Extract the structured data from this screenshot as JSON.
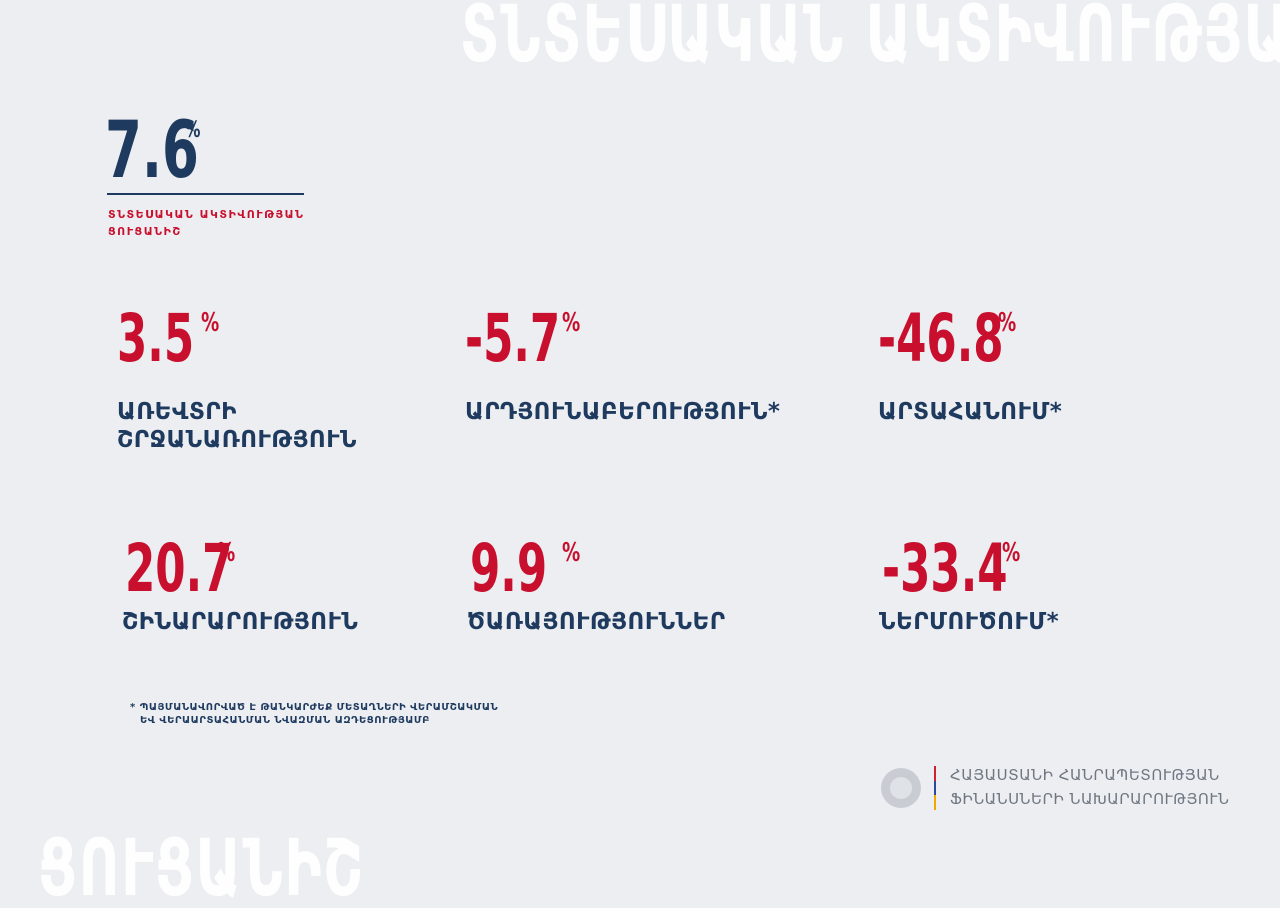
{
  "background": {
    "top": "ՏՆՏԵՍԱԿԱՆ ԱԿՏԻՎՈՒԹՅԱՆ",
    "bottom": "ՑՈՒՑԱՆԻՇ"
  },
  "headline": {
    "value": 7.6,
    "unit": "%",
    "label": [
      "ՏՆՏԵՍԱԿԱՆ ԱԿՏԻՎՈՒԹՅԱՆ",
      "ՑՈՒՑԱՆԻՇ"
    ]
  },
  "metrics": [
    {
      "value": 3.5,
      "unit": "%",
      "label": [
        "ԱՌԵՎՏՐԻ",
        "ՇՐՋԱՆԱՌՈՒԹՅՈՒՆ"
      ]
    },
    {
      "value": -5.7,
      "unit": "%",
      "label": [
        "ԱՐԴՅՈՒՆԱԲԵՐՈՒԹՅՈՒՆ*"
      ]
    },
    {
      "value": -46.8,
      "unit": "%",
      "label": [
        "ԱՐՏԱՀԱՆՈՒՄ*"
      ]
    },
    {
      "value": 20.7,
      "unit": "%",
      "label": [
        "ՇԻՆԱՐԱՐՈՒԹՅՈՒՆ"
      ]
    },
    {
      "value": 9.9,
      "unit": "%",
      "label": [
        "ԾԱՌԱՅՈՒԹՅՈՒՆՆԵՐ"
      ]
    },
    {
      "value": -33.4,
      "unit": "%",
      "label": [
        "ՆԵՐՄՈՒԾՈՒՄ*"
      ]
    }
  ],
  "footnote": [
    "* ՊԱՅՄԱՆԱՎՈՐՎԱԾ Է ԹԱՆԿԱՐԺԵՔ ՄԵՏԱՂՆԵՐԻ ՎԵՐԱՄՇԱԿՄԱՆ",
    "ԵՎ ՎԵՐԱԱՐՏԱՀԱՆՄԱՆ ՆՎԱԶՄԱՆ ԱԶԴԵՑՈՒԹՅԱՄԲ"
  ],
  "logo": [
    "ՀԱՅԱՍՏԱՆԻ ՀԱՆՐԱՊԵՏՈՒԹՅԱՆ",
    "ՖԻՆԱՆՍՆԵՐԻ ՆԱԽԱՐԱՐՈՒԹՅՈՒՆ"
  ]
}
